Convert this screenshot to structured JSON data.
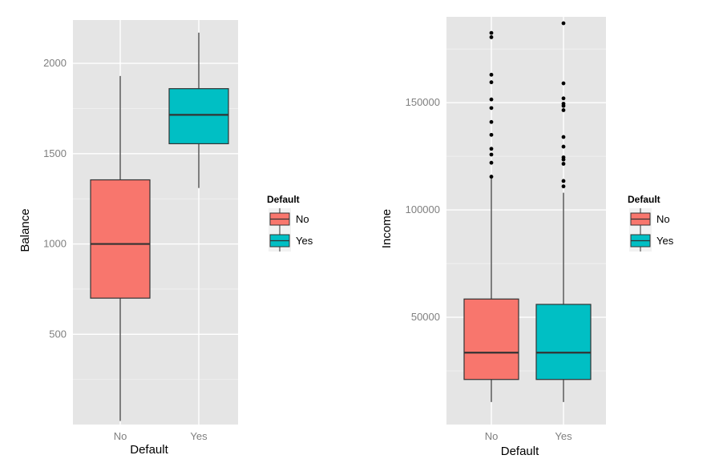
{
  "colors": {
    "panel_bg": "#e5e5e5",
    "grid": "#ffffff",
    "No": "#f8766d",
    "Yes": "#00bfc4",
    "line": "#333333",
    "outlier": "#000000"
  },
  "chart_data": [
    {
      "type": "box",
      "xlabel": "Default",
      "ylabel": "Balance",
      "categories": [
        "No",
        "Yes"
      ],
      "ylim": [
        0,
        2240
      ],
      "yticks": [
        500,
        1000,
        1500,
        2000
      ],
      "ytick_labels": [
        "500",
        "1000",
        "1500",
        "2000"
      ],
      "grid": true,
      "legend": {
        "title": "Default",
        "entries": [
          "No",
          "Yes"
        ],
        "placement": "right"
      },
      "boxes": [
        {
          "category": "No",
          "min": 20,
          "q1": 700,
          "median": 1000,
          "q3": 1355,
          "max": 1930,
          "outliers": []
        },
        {
          "category": "Yes",
          "min": 1310,
          "q1": 1555,
          "median": 1715,
          "q3": 1860,
          "max": 2170,
          "outliers": []
        }
      ]
    },
    {
      "type": "box",
      "xlabel": "Default",
      "ylabel": "Income",
      "categories": [
        "No",
        "Yes"
      ],
      "ylim": [
        0,
        190000
      ],
      "yticks": [
        50000,
        100000,
        150000
      ],
      "ytick_labels": [
        "50000",
        "100000",
        "150000"
      ],
      "grid": true,
      "legend": {
        "title": "Default",
        "entries": [
          "No",
          "Yes"
        ],
        "placement": "right"
      },
      "boxes": [
        {
          "category": "No",
          "min": 10500,
          "q1": 21000,
          "median": 33500,
          "q3": 58500,
          "max": 115000,
          "outliers": [
            115500,
            122000,
            125800,
            128500,
            135000,
            141000,
            147500,
            151500,
            159500,
            163000,
            180500,
            182500
          ]
        },
        {
          "category": "Yes",
          "min": 10500,
          "q1": 21000,
          "median": 33500,
          "q3": 56000,
          "max": 108000,
          "outliers": [
            111000,
            113500,
            121500,
            123500,
            124500,
            129500,
            134000,
            146500,
            148500,
            149500,
            152000,
            159000,
            187000
          ]
        }
      ]
    }
  ]
}
